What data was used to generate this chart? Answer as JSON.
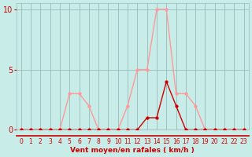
{
  "x": [
    0,
    1,
    2,
    3,
    4,
    5,
    6,
    7,
    8,
    9,
    10,
    11,
    12,
    13,
    14,
    15,
    16,
    17,
    18,
    19,
    20,
    21,
    22,
    23
  ],
  "rafales": [
    0,
    0,
    0,
    0,
    0,
    3,
    3,
    2,
    0,
    0,
    0,
    2,
    5,
    5,
    10,
    10,
    3,
    3,
    2,
    0,
    0,
    0,
    0,
    0
  ],
  "moyen": [
    0,
    0,
    0,
    0,
    0,
    0,
    0,
    0,
    0,
    0,
    0,
    0,
    0,
    1,
    1,
    4,
    2,
    0,
    0,
    0,
    0,
    0,
    0,
    0
  ],
  "xlabel": "Vent moyen/en rafales ( km/h )",
  "yticks": [
    0,
    5,
    10
  ],
  "xtick_labels": [
    "0",
    "1",
    "2",
    "3",
    "4",
    "5",
    "6",
    "7",
    "8",
    "9",
    "10",
    "11",
    "12",
    "13",
    "14",
    "15",
    "16",
    "17",
    "18",
    "19",
    "20",
    "21",
    "22",
    "23"
  ],
  "color_rafales": "#FF9999",
  "color_moyen": "#CC0000",
  "bg_color": "#C8ECE8",
  "grid_color": "#99BBBB",
  "axis_line_color": "#CC0000",
  "tick_color": "#CC0000",
  "xlabel_color": "#CC0000",
  "marker_size": 2.5,
  "line_width": 1.0,
  "ylim": [
    0,
    10.5
  ],
  "xlim": [
    -0.5,
    23.5
  ]
}
